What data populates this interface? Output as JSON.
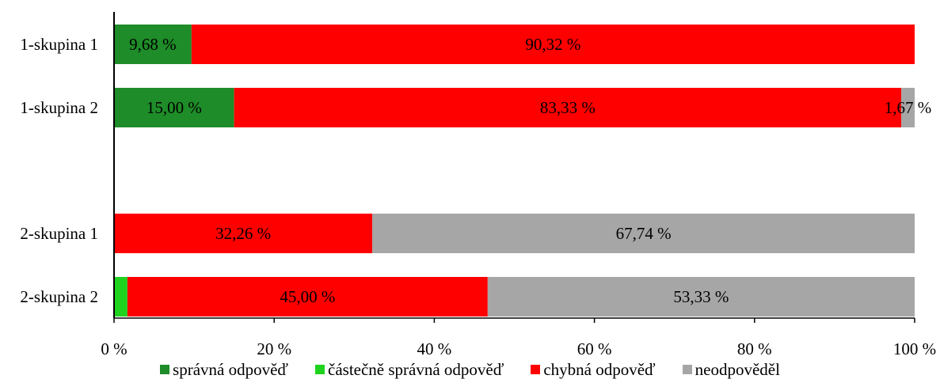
{
  "chart_data": {
    "type": "bar",
    "orientation": "horizontal",
    "stacked": "percent",
    "categories": [
      "1-skupina 1",
      "1-skupina 2",
      "2-skupina 1",
      "2-skupina 2"
    ],
    "series": [
      {
        "name": "správná odpověď",
        "color": "#1e8c28",
        "values": [
          9.68,
          15.0,
          0,
          0
        ],
        "labels": [
          "9,68 %",
          "15,00 %",
          "",
          ""
        ]
      },
      {
        "name": "částečně správná odpověď",
        "color": "#1ed21e",
        "values": [
          0,
          0,
          0,
          1.67
        ],
        "labels": [
          "",
          "",
          "",
          ""
        ]
      },
      {
        "name": "chybná odpověď",
        "color": "#ff0000",
        "values": [
          90.32,
          83.33,
          32.26,
          45.0
        ],
        "labels": [
          "90,32 %",
          "83,33 %",
          "32,26 %",
          "45,00 %"
        ]
      },
      {
        "name": "neodpověděl",
        "color": "#a6a6a6",
        "values": [
          0,
          1.67,
          67.74,
          53.33
        ],
        "labels": [
          "",
          "1,67 %",
          "67,74 %",
          "53,33 %"
        ]
      }
    ],
    "xaxis": {
      "ticks": [
        "0 %",
        "20 %",
        "40 %",
        "60 %",
        "80 %",
        "100 %"
      ],
      "range": [
        0,
        100
      ]
    },
    "legend_position": "bottom",
    "grid": false
  }
}
